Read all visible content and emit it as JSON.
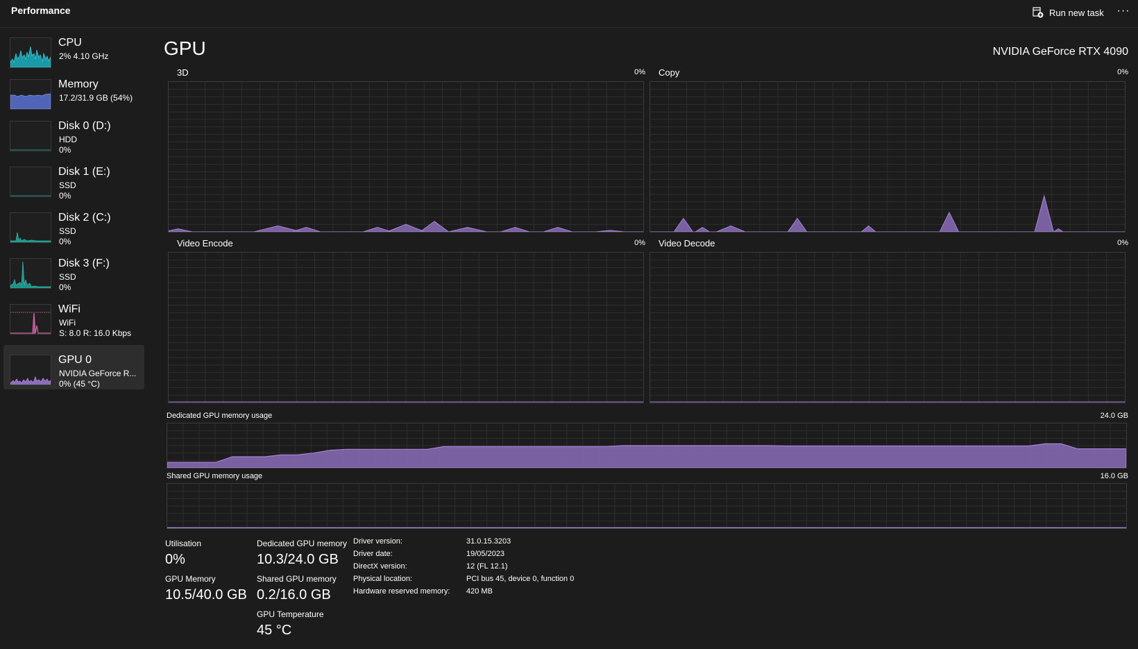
{
  "window": {
    "title": "Performance",
    "run_new_task": "Run new task",
    "more": "···"
  },
  "colors": {
    "gpu_fill": "#8a6cb8",
    "gpu_line": "#a784d6",
    "cpu_fill": "#1a9aa8",
    "memory_fill": "#5065b8",
    "wifi_line": "#d068a8",
    "disk_fill": "#1f8f86",
    "grid": "#2e2e2e"
  },
  "sidebar": {
    "items": [
      {
        "name": "CPU",
        "line1": "2% 4.10 GHz",
        "line2": "",
        "icon": "cpu-graph-thumb"
      },
      {
        "name": "Memory",
        "line1": "17.2/31.9 GB (54%)",
        "line2": "",
        "icon": "memory-graph-thumb"
      },
      {
        "name": "Disk 0 (D:)",
        "line1": "HDD",
        "line2": "0%",
        "icon": "disk-graph-thumb"
      },
      {
        "name": "Disk 1 (E:)",
        "line1": "SSD",
        "line2": "0%",
        "icon": "disk-graph-thumb"
      },
      {
        "name": "Disk 2 (C:)",
        "line1": "SSD",
        "line2": "0%",
        "icon": "disk-graph-thumb"
      },
      {
        "name": "Disk 3 (F:)",
        "line1": "SSD",
        "line2": "0%",
        "icon": "disk-graph-thumb"
      },
      {
        "name": "WiFi",
        "line1": "WiFi",
        "line2": "S: 8.0  R: 16.0 Kbps",
        "icon": "network-graph-thumb"
      },
      {
        "name": "GPU 0",
        "line1": "NVIDIA GeForce R...",
        "line2": "0% (45 °C)",
        "icon": "gpu-graph-thumb"
      }
    ],
    "selected_index": 7
  },
  "main": {
    "title": "GPU",
    "device": "NVIDIA GeForce RTX 4090",
    "engines": [
      {
        "label": "3D",
        "percent": "0%"
      },
      {
        "label": "Copy",
        "percent": "0%"
      },
      {
        "label": "Video Encode",
        "percent": "0%"
      },
      {
        "label": "Video Decode",
        "percent": "0%"
      }
    ],
    "dedicated": {
      "label": "Dedicated GPU memory usage",
      "max": "24.0 GB"
    },
    "shared": {
      "label": "Shared GPU memory usage",
      "max": "16.0 GB"
    }
  },
  "stats": {
    "utilisation": {
      "label": "Utilisation",
      "value": "0%"
    },
    "dedicated_memory": {
      "label": "Dedicated GPU memory",
      "value": "10.3/24.0 GB"
    },
    "gpu_memory": {
      "label": "GPU Memory",
      "value": "10.5/40.0 GB"
    },
    "shared_memory": {
      "label": "Shared GPU memory",
      "value": "0.2/16.0 GB"
    },
    "temperature": {
      "label": "GPU Temperature",
      "value": "45 °C"
    }
  },
  "properties": [
    {
      "key": "Driver version:",
      "value": "31.0.15.3203"
    },
    {
      "key": "Driver date:",
      "value": "19/05/2023"
    },
    {
      "key": "DirectX version:",
      "value": "12 (FL 12.1)"
    },
    {
      "key": "Physical location:",
      "value": "PCI bus 45, device 0, function 0"
    },
    {
      "key": "Hardware reserved memory:",
      "value": "420 MB"
    }
  ],
  "series": {
    "engine_3d": [
      1.5,
      1,
      1,
      1,
      1,
      1,
      1,
      1,
      1,
      1,
      1,
      1,
      1,
      1,
      1,
      1,
      1,
      1,
      1,
      1,
      1,
      1,
      1,
      1,
      1,
      1,
      1,
      1,
      1,
      1,
      1,
      1,
      1,
      1,
      1,
      1,
      1,
      1,
      1,
      1,
      1,
      1,
      1,
      1,
      1,
      1,
      1,
      1,
      1,
      1,
      1,
      1,
      1,
      1,
      1,
      1,
      1,
      1,
      1,
      1
    ],
    "engine_copy": [
      0,
      0,
      0,
      0,
      0,
      0,
      0,
      0,
      0,
      0,
      0,
      0,
      0,
      0,
      0,
      0,
      0,
      0,
      0,
      0,
      0,
      0,
      0,
      0,
      0,
      0,
      0,
      0,
      0,
      0,
      0,
      0,
      0,
      0,
      0,
      0,
      0,
      0,
      0,
      0,
      0,
      0,
      0,
      0,
      0,
      0,
      0,
      0,
      0,
      0,
      0,
      0,
      0,
      0,
      0,
      0,
      0,
      0,
      0,
      0
    ],
    "dedicated_gb": [
      3,
      3,
      3,
      3,
      6,
      6,
      6,
      7,
      7,
      8,
      9.5,
      10,
      10,
      10,
      10,
      10,
      10,
      11.5,
      11.5,
      11.5,
      11.5,
      11.5,
      11.5,
      11.5,
      11.5,
      11.5,
      11.5,
      11.5,
      12,
      12,
      12,
      12,
      12,
      12,
      12,
      12,
      12,
      12,
      11.8,
      11.8,
      11.8,
      11.8,
      11.8,
      11.8,
      11.8,
      11.8,
      11.8,
      11.8,
      11.8,
      11.8,
      11.8,
      11.8,
      11.8,
      11.8,
      13,
      13,
      10.3,
      10.3,
      10.3,
      10.3
    ],
    "shared_gb": [
      0.2,
      0.2,
      0.2,
      0.2,
      0.2,
      0.2,
      0.2,
      0.2,
      0.2,
      0.2,
      0.2,
      0.2,
      0.2,
      0.2,
      0.2,
      0.2,
      0.2,
      0.2,
      0.2,
      0.2,
      0.2,
      0.2,
      0.2,
      0.2,
      0.2,
      0.2,
      0.2,
      0.2,
      0.2,
      0.2,
      0.2,
      0.2,
      0.2,
      0.2,
      0.2,
      0.2,
      0.2,
      0.2,
      0.2,
      0.2,
      0.2,
      0.2,
      0.2,
      0.2,
      0.2,
      0.2,
      0.2,
      0.2,
      0.2,
      0.2,
      0.2,
      0.2,
      0.2,
      0.2,
      0.2,
      0.2,
      0.2,
      0.2,
      0.2,
      0.2
    ]
  }
}
